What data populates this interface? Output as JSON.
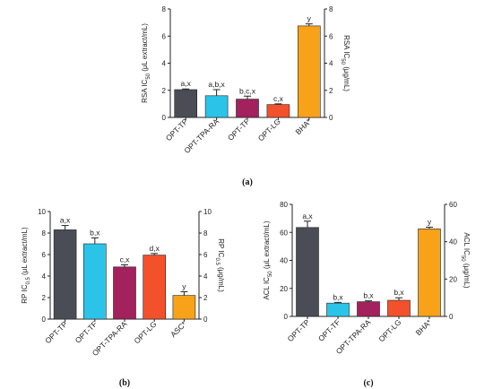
{
  "colors": {
    "dark_gray": "#4a4d55",
    "cyan": "#2bc4e8",
    "magenta": "#a3215c",
    "red_orange": "#f2512c",
    "orange": "#f8a21a"
  },
  "chart_data": [
    {
      "type": "bar",
      "panel_label": "(a)",
      "categories": [
        "OPT-TP",
        "OPT-TPA-RA",
        "OPT-TF",
        "OPT-LG",
        "BHA*"
      ],
      "values": [
        2.05,
        1.6,
        1.35,
        0.95,
        6.75
      ],
      "errors": [
        0.05,
        0.45,
        0.22,
        0.05,
        0.15
      ],
      "significance_labels": [
        "a,x",
        "a,b,x",
        "b,c,x",
        "c,x",
        "y"
      ],
      "bar_colors": [
        "#4a4d55",
        "#2bc4e8",
        "#a3215c",
        "#f2512c",
        "#f8a21a"
      ],
      "y_axis_parts": [
        "RSA IC",
        "50",
        " (μL extract/mL)"
      ],
      "y2_axis_parts": [
        "RSA IC",
        "50",
        " (μg/mL)"
      ],
      "ylim": [
        0,
        8
      ],
      "yticks": [
        0,
        2,
        4,
        6,
        8
      ],
      "y2lim": [
        0,
        8
      ],
      "y2ticks": [
        0,
        2,
        4,
        6,
        8
      ]
    },
    {
      "type": "bar",
      "panel_label": "(b)",
      "categories": [
        "OPT-TP",
        "OPT-TF",
        "OPT-TPA-RA",
        "OPT-LG",
        "ASC*"
      ],
      "values": [
        8.3,
        7.0,
        4.85,
        5.95,
        2.2
      ],
      "errors": [
        0.4,
        0.55,
        0.2,
        0.15,
        0.35
      ],
      "significance_labels": [
        "a,x",
        "b,x",
        "c,x",
        "d,x",
        "y"
      ],
      "bar_colors": [
        "#4a4d55",
        "#2bc4e8",
        "#a3215c",
        "#f2512c",
        "#f8a21a"
      ],
      "y_axis_parts": [
        "RP IC",
        "0.5",
        " (μL extract/mL)"
      ],
      "y2_axis_parts": [
        "RP IC",
        "0.5",
        " (μg/mL)"
      ],
      "ylim": [
        0,
        10
      ],
      "yticks": [
        0,
        2,
        4,
        6,
        8,
        10
      ],
      "y2lim": [
        0,
        10
      ],
      "y2ticks": [
        0,
        2,
        4,
        6,
        8,
        10
      ]
    },
    {
      "type": "bar",
      "panel_label": "(c)",
      "categories": [
        "OPT-TP",
        "OPT-TF",
        "OPT-TPA-RA",
        "OPT-LG",
        "BHA*"
      ],
      "values": [
        63.5,
        9.5,
        10.5,
        11.5,
        62.5
      ],
      "errors": [
        4.5,
        0.5,
        0.6,
        1.8,
        1.2
      ],
      "significance_labels": [
        "a,x",
        "b,x",
        "b,x",
        "b,x",
        "y"
      ],
      "bar_colors": [
        "#4a4d55",
        "#2bc4e8",
        "#a3215c",
        "#f2512c",
        "#f8a21a"
      ],
      "y_axis_parts": [
        "ACL IC",
        "50",
        " (μL extract/mL)"
      ],
      "y2_axis_parts": [
        "ACL IC",
        "50",
        " (μg/mL)"
      ],
      "ylim": [
        0,
        80
      ],
      "yticks": [
        0,
        20,
        40,
        60,
        80
      ],
      "y2lim": [
        0,
        60
      ],
      "y2ticks": [
        0,
        20,
        40,
        60
      ]
    }
  ]
}
